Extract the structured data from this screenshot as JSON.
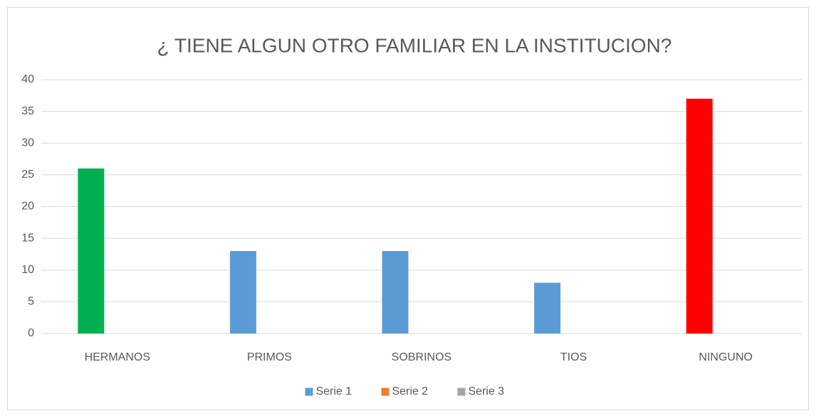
{
  "chart_data": {
    "type": "bar",
    "title": "¿ TIENE ALGUN OTRO FAMILIAR EN LA INSTITUCION?",
    "categories": [
      "HERMANOS",
      "PRIMOS",
      "SOBRINOS",
      "TIOS",
      "NINGUNO"
    ],
    "series": [
      {
        "name": "Serie 1",
        "color": "#5b9bd5",
        "values": [
          26,
          13,
          13,
          8,
          37
        ],
        "colors": [
          "#00b050",
          "#5b9bd5",
          "#5b9bd5",
          "#5b9bd5",
          "#ff0000"
        ]
      },
      {
        "name": "Serie 2",
        "color": "#ed7d31",
        "values": [
          null,
          null,
          null,
          null,
          null
        ]
      },
      {
        "name": "Serie 3",
        "color": "#a5a5a5",
        "values": [
          null,
          null,
          null,
          null,
          null
        ]
      }
    ],
    "ylim": [
      0,
      40
    ],
    "yticks": [
      0,
      5,
      10,
      15,
      20,
      25,
      30,
      35,
      40
    ],
    "grid": true,
    "legend": "bottom"
  }
}
